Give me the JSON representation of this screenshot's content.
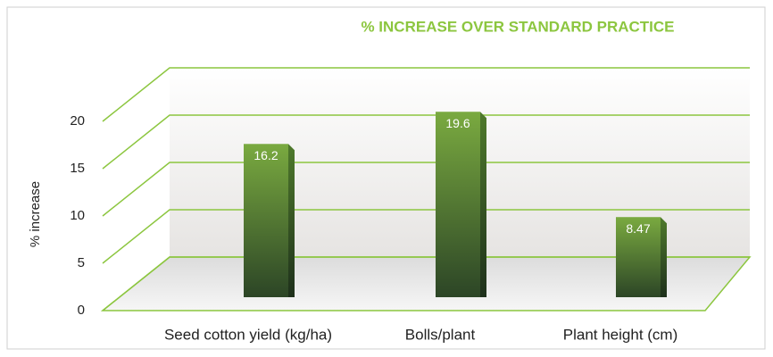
{
  "chart_data": {
    "type": "bar",
    "title": "% INCREASE OVER STANDARD PRACTICE",
    "y_label": "% increase",
    "categories": [
      "Seed cotton yield (kg/ha)",
      "Bolls/plant",
      "Plant height (cm)"
    ],
    "values": [
      16.2,
      19.6,
      8.47
    ],
    "color": "#6a9a3a",
    "ylim": [
      0,
      20
    ],
    "yticks": [
      0,
      5,
      10,
      15,
      20
    ],
    "grid": true
  }
}
